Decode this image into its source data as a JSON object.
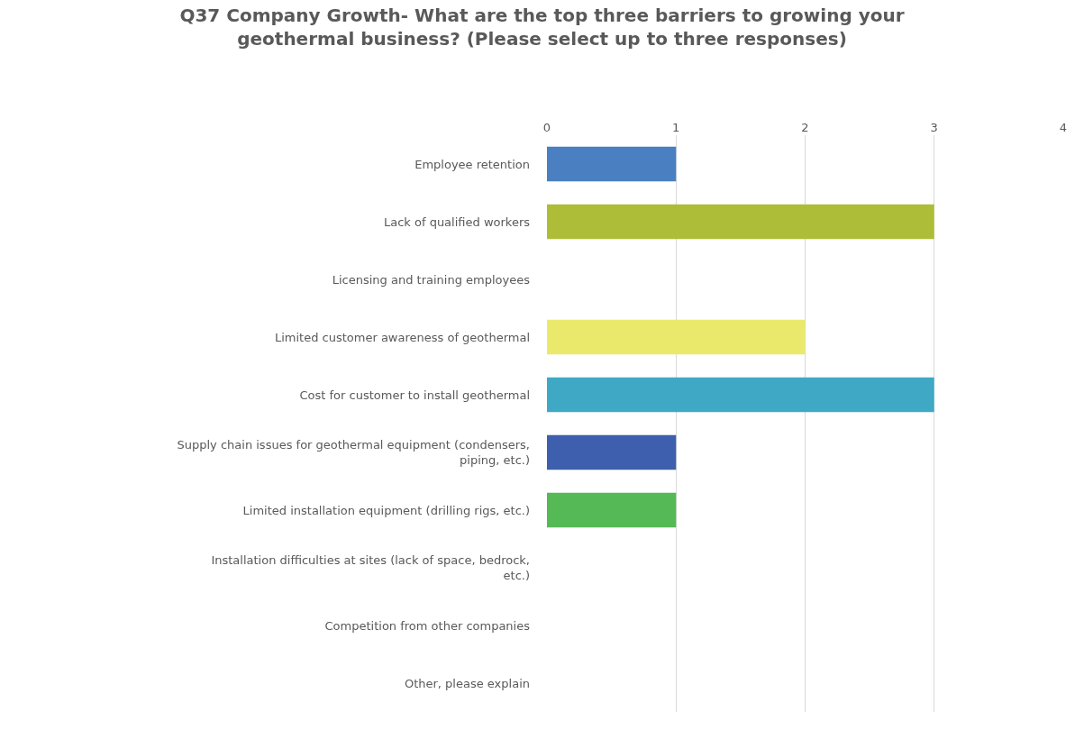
{
  "chart_data": {
    "type": "bar",
    "orientation": "horizontal",
    "title": "Q37 Company Growth- What are the top three barriers to growing your geothermal business? (Please select up to three responses)",
    "categories": [
      "Employee retention",
      "Lack of qualified workers",
      "Licensing and training employees",
      "Limited customer awareness of geothermal",
      "Cost for customer to install geothermal",
      "Supply chain issues for geothermal equipment (condensers, piping, etc.)",
      "Limited installation equipment (drilling rigs, etc.)",
      "Installation difficulties at sites (lack of space, bedrock, etc.)",
      "Competition from other companies",
      "Other, please explain"
    ],
    "values": [
      1,
      3,
      0,
      2,
      3,
      1,
      1,
      0,
      0,
      0
    ],
    "colors": [
      "#4a7fc1",
      "#aebd38",
      null,
      "#ebe96b",
      "#3fa9c5",
      "#3e5fad",
      "#55b955",
      null,
      null,
      null
    ],
    "xlim": [
      0,
      4
    ],
    "xticks": [
      0,
      1,
      2,
      3,
      4
    ],
    "grid": "x"
  }
}
